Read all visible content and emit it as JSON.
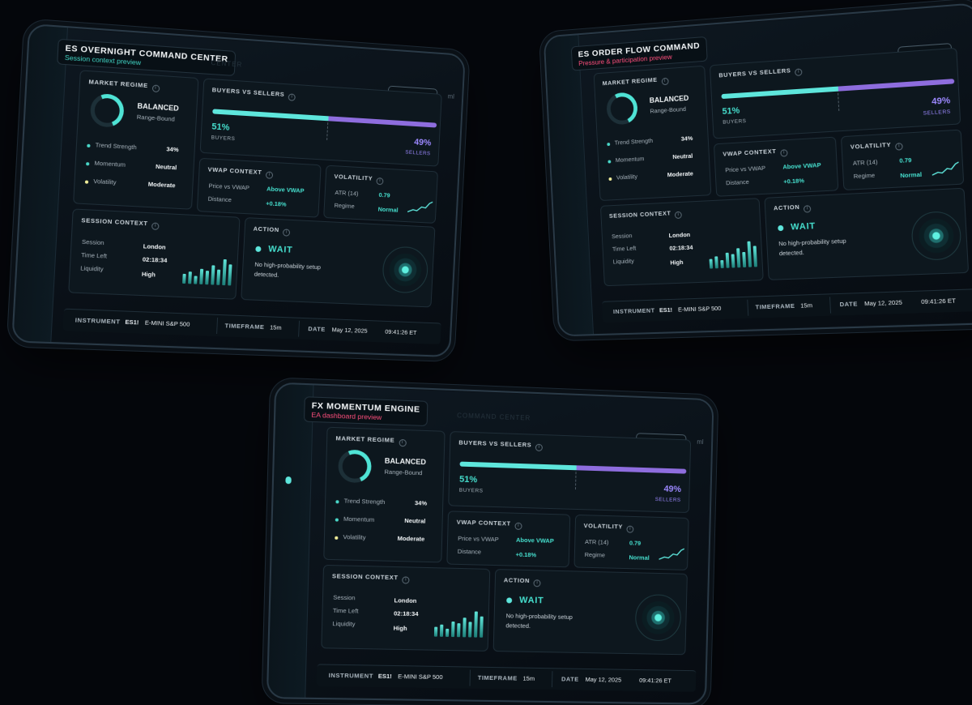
{
  "devices": [
    {
      "title": "ES OVERNIGHT COMMAND CENTER",
      "subtitle": "Session context preview",
      "ghost": "CENTER"
    },
    {
      "title": "ES ORDER FLOW COMMAND",
      "subtitle": "Pressure & participation preview",
      "ghost": ""
    },
    {
      "title": "FX MOMENTUM ENGINE",
      "subtitle": "EA dashboard preview",
      "ghost": "COMMAND CENTER"
    }
  ],
  "preview_label": "PREVIEW",
  "ghost_small": "ml",
  "market_regime": {
    "heading": "MARKET REGIME",
    "state": "BALANCED",
    "sub": "Range-Bound",
    "rows": [
      {
        "label": "Trend Strength",
        "value": "34%"
      },
      {
        "label": "Momentum",
        "value": "Neutral"
      },
      {
        "label": "Volatility",
        "value": "Moderate"
      }
    ],
    "ring_level": 0.34
  },
  "buyers_sellers": {
    "heading": "BUYERS VS SELLERS",
    "buyers_pct": "51%",
    "buyers_label": "BUYERS",
    "sellers_pct": "49%",
    "sellers_label": "SELLERS",
    "buyers_fraction": 0.51
  },
  "vwap": {
    "heading": "VWAP CONTEXT",
    "rows": [
      {
        "label": "Price vs VWAP",
        "value": "Above VWAP"
      },
      {
        "label": "Distance",
        "value": "+0.18%"
      }
    ]
  },
  "volatility": {
    "heading": "VOLATILITY",
    "rows": [
      {
        "label": "ATR (14)",
        "value": "0.79"
      },
      {
        "label": "Regime",
        "value": "Normal"
      }
    ]
  },
  "session": {
    "heading": "SESSION CONTEXT",
    "rows": [
      {
        "label": "Session",
        "value": "London"
      },
      {
        "label": "Time Left",
        "value": "02:18:34"
      },
      {
        "label": "Liquidity",
        "value": "High"
      }
    ],
    "bar_levels": [
      0.35,
      0.45,
      0.3,
      0.55,
      0.5,
      0.7,
      0.55,
      0.95,
      0.75
    ]
  },
  "action": {
    "heading": "ACTION",
    "state": "WAIT",
    "desc_1": "No high-probability setup",
    "desc_2": "detected."
  },
  "footer": {
    "instrument_label": "INSTRUMENT",
    "instrument_code": "ES1!",
    "instrument_name": "E-MINI S&P 500",
    "timeframe_label": "TIMEFRAME",
    "timeframe_value": "15m",
    "date_label": "DATE",
    "date_value": "May 12, 2025",
    "time_value": "09:41:26 ET"
  },
  "colors": {
    "accent": "#5ee6dc",
    "sellers": "#8e6dde",
    "alert_subtitle": "#ff4f7d"
  }
}
